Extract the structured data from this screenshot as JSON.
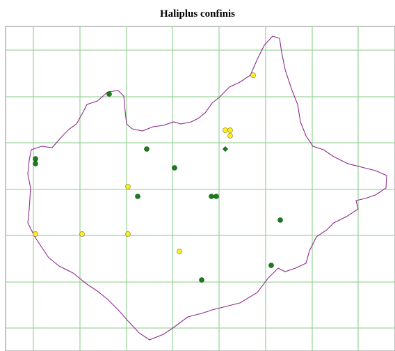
{
  "title": "Haliplus confinis"
}
